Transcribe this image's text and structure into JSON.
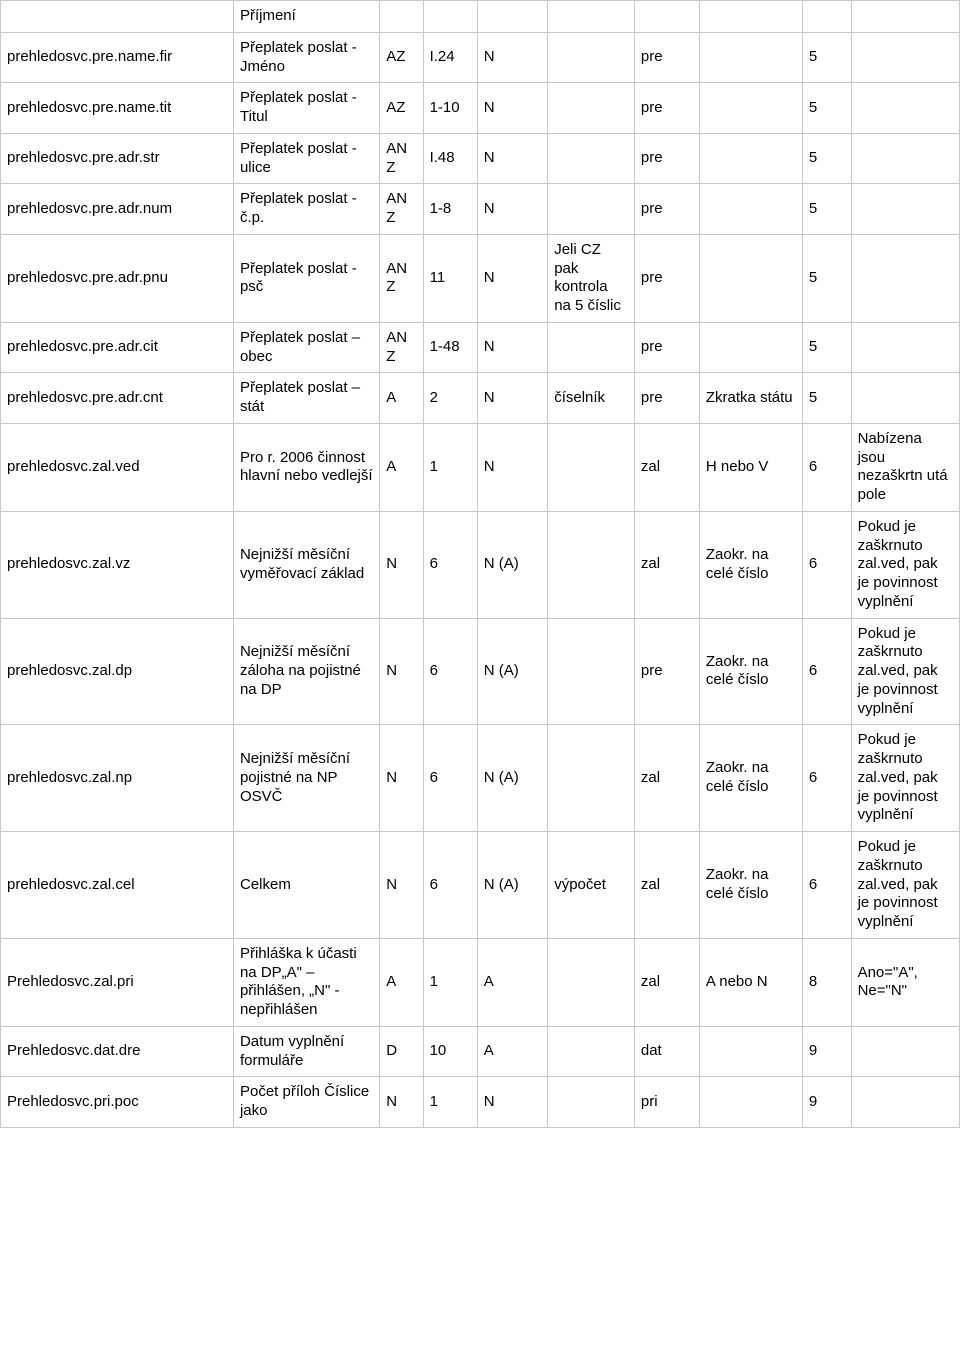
{
  "rows": [
    {
      "c0": "",
      "c1": "Příjmení",
      "c2": "",
      "c3": "",
      "c4": "",
      "c5": "",
      "c6": "",
      "c7": "",
      "c8": "",
      "c9": ""
    },
    {
      "c0": "prehledosvc.pre.name.fir",
      "c1": "Přeplatek poslat - Jméno",
      "c2": "AZ",
      "c3": "I.24",
      "c4": "N",
      "c5": "",
      "c6": "pre",
      "c7": "",
      "c8": "5",
      "c9": ""
    },
    {
      "c0": "prehledosvc.pre.name.tit",
      "c1": "Přeplatek poslat - Titul",
      "c2": "AZ",
      "c3": "1-10",
      "c4": "N",
      "c5": "",
      "c6": "pre",
      "c7": "",
      "c8": "5",
      "c9": ""
    },
    {
      "c0": "prehledosvc.pre.adr.str",
      "c1": "Přeplatek poslat - ulice",
      "c2": "AN Z",
      "c3": "I.48",
      "c4": "N",
      "c5": "",
      "c6": "pre",
      "c7": "",
      "c8": "5",
      "c9": ""
    },
    {
      "c0": "prehledosvc.pre.adr.num",
      "c1": "Přeplatek poslat - č.p.",
      "c2": "AN Z",
      "c3": "1-8",
      "c4": "N",
      "c5": "",
      "c6": "pre",
      "c7": "",
      "c8": "5",
      "c9": ""
    },
    {
      "c0": "prehledosvc.pre.adr.pnu",
      "c1": "Přeplatek poslat - psč",
      "c2": "AN Z",
      "c3": "11",
      "c4": "N",
      "c5": "Jeli CZ pak kontrola na 5 číslic",
      "c6": "pre",
      "c7": "",
      "c8": "5",
      "c9": ""
    },
    {
      "c0": "prehledosvc.pre.adr.cit",
      "c1": "Přeplatek poslat – obec",
      "c2": "AN Z",
      "c3": "1-48",
      "c4": "N",
      "c5": "",
      "c6": "pre",
      "c7": "",
      "c8": "5",
      "c9": ""
    },
    {
      "c0": "prehledosvc.pre.adr.cnt",
      "c1": "Přeplatek poslat – stát",
      "c2": "A",
      "c3": "2",
      "c4": "N",
      "c5": "číselník",
      "c6": "pre",
      "c7": "Zkratka státu",
      "c8": "5",
      "c9": ""
    },
    {
      "c0": "prehledosvc.zal.ved",
      "c1": "Pro r. 2006 činnost hlavní nebo vedlejší",
      "c2": "A",
      "c3": "1",
      "c4": "N",
      "c5": "",
      "c6": "zal",
      "c7": "H nebo V",
      "c8": "6",
      "c9": "Nabízena jsou nezaškrtn utá pole"
    },
    {
      "c0": "prehledosvc.zal.vz",
      "c1": "Nejnižší měsíční vyměřovací základ",
      "c2": "N",
      "c3": "6",
      "c4": "N (A)",
      "c5": "",
      "c6": "zal",
      "c7": "Zaokr. na celé číslo",
      "c8": "6",
      "c9": "Pokud je zaškrnuto zal.ved, pak je povinnost vyplnění"
    },
    {
      "c0": "prehledosvc.zal.dp",
      "c1": "Nejnižší měsíční záloha na pojistné na DP",
      "c2": "N",
      "c3": "6",
      "c4": "N (A)",
      "c5": "",
      "c6": "pre",
      "c7": "Zaokr. na celé číslo",
      "c8": "6",
      "c9": "Pokud je zaškrnuto zal.ved, pak je povinnost vyplnění"
    },
    {
      "c0": "prehledosvc.zal.np",
      "c1": "Nejnižší měsíční pojistné na NP OSVČ",
      "c2": "N",
      "c3": "6",
      "c4": "N (A)",
      "c5": "",
      "c6": "zal",
      "c7": "Zaokr. na celé číslo",
      "c8": "6",
      "c9": "Pokud je zaškrnuto zal.ved, pak je povinnost vyplnění"
    },
    {
      "c0": "prehledosvc.zal.cel",
      "c1": "Celkem",
      "c2": "N",
      "c3": "6",
      "c4": "N (A)",
      "c5": "výpočet",
      "c6": "zal",
      "c7": "Zaokr. na celé číslo",
      "c8": "6",
      "c9": "Pokud je zaškrnuto zal.ved, pak je povinnost vyplnění"
    },
    {
      "c0": "Prehledosvc.zal.pri",
      "c1": "Přihláška k účasti na DP„A\" – přihlášen, „N\" - nepřihlášen",
      "c2": "A",
      "c3": "1",
      "c4": "A",
      "c5": "",
      "c6": "zal",
      "c7": "A nebo N",
      "c8": "8",
      "c9": "Ano=\"A\", Ne=\"N\""
    },
    {
      "c0": "Prehledosvc.dat.dre",
      "c1": "Datum vyplnění formuláře",
      "c2": "D",
      "c3": "10",
      "c4": "A",
      "c5": "",
      "c6": "dat",
      "c7": "",
      "c8": "9",
      "c9": ""
    },
    {
      "c0": "Prehledosvc.pri.poc",
      "c1": "Počet příloh Číslice jako",
      "c2": "N",
      "c3": "1",
      "c4": "N",
      "c5": "",
      "c6": "pri",
      "c7": "",
      "c8": "9",
      "c9": ""
    }
  ]
}
